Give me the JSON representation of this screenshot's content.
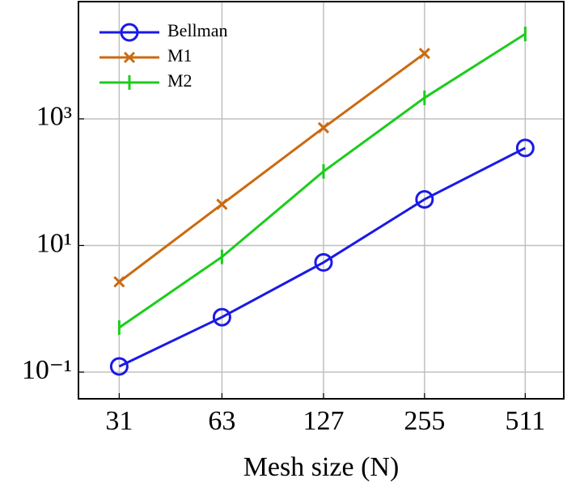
{
  "chart_data": {
    "type": "line",
    "xlabel": "Mesh size (N)",
    "x": [
      31,
      63,
      127,
      255,
      511
    ],
    "xscale": "log2",
    "xlim": [
      23.4,
      666.7
    ],
    "xticks": [
      31,
      63,
      127,
      255,
      511
    ],
    "yscale": "log",
    "ylim": [
      0.0379,
      71100
    ],
    "yticks": [
      {
        "value": 0.1,
        "label": "10⁻¹"
      },
      {
        "value": 10,
        "label": "10¹"
      },
      {
        "value": 1000,
        "label": "10³"
      }
    ],
    "grid": true,
    "legend": "upper left",
    "series": [
      {
        "name": "Bellman",
        "color": "#1a1ae6",
        "marker": "circle",
        "values": [
          0.123,
          0.738,
          5.4,
          53.5,
          347
        ]
      },
      {
        "name": "M1",
        "color": "#cc6a10",
        "marker": "x",
        "values": [
          2.66,
          44.8,
          724,
          10800,
          null
        ]
      },
      {
        "name": "M2",
        "color": "#1ccc1c",
        "marker": "bar",
        "values": [
          0.504,
          6.6,
          148,
          2150,
          21900
        ]
      }
    ]
  }
}
